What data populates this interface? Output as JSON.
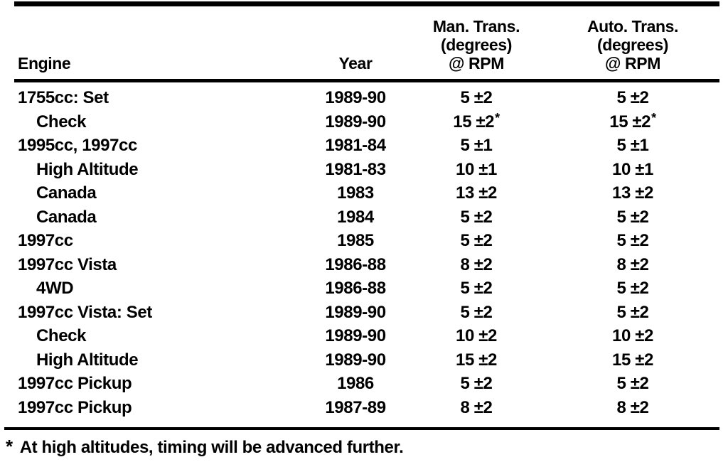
{
  "table": {
    "headers": {
      "engine": "Engine",
      "year": "Year",
      "man_trans": [
        "Man. Trans.",
        "(degrees)",
        "@ RPM"
      ],
      "auto_trans": [
        "Auto. Trans.",
        "(degrees)",
        "@ RPM"
      ]
    },
    "rows": [
      {
        "engine": "1755cc: Set",
        "indent": false,
        "year": "1989-90",
        "man": "5 ±2",
        "auto": "5 ±2"
      },
      {
        "engine": "Check",
        "indent": true,
        "year": "1989-90",
        "man": "15 ±2*",
        "auto": "15 ±2*"
      },
      {
        "engine": "1995cc, 1997cc",
        "indent": false,
        "year": "1981-84",
        "man": "5 ±1",
        "auto": "5 ±1"
      },
      {
        "engine": "High Altitude",
        "indent": true,
        "year": "1981-83",
        "man": "10 ±1",
        "auto": "10 ±1"
      },
      {
        "engine": "Canada",
        "indent": true,
        "year": "1983",
        "man": "13 ±2",
        "auto": "13 ±2"
      },
      {
        "engine": "Canada",
        "indent": true,
        "year": "1984",
        "man": "5 ±2",
        "auto": "5 ±2"
      },
      {
        "engine": "1997cc",
        "indent": false,
        "year": "1985",
        "man": "5 ±2",
        "auto": "5 ±2"
      },
      {
        "engine": "1997cc Vista",
        "indent": false,
        "year": "1986-88",
        "man": "8 ±2",
        "auto": "8 ±2"
      },
      {
        "engine": "4WD",
        "indent": true,
        "year": "1986-88",
        "man": "5 ±2",
        "auto": "5 ±2"
      },
      {
        "engine": "1997cc Vista: Set",
        "indent": false,
        "year": "1989-90",
        "man": "5 ±2",
        "auto": "5 ±2"
      },
      {
        "engine": "Check",
        "indent": true,
        "year": "1989-90",
        "man": "10 ±2",
        "auto": "10 ±2"
      },
      {
        "engine": "High Altitude",
        "indent": true,
        "year": "1989-90",
        "man": "15 ±2",
        "auto": "15 ±2"
      },
      {
        "engine": "1997cc Pickup",
        "indent": false,
        "year": "1986",
        "man": "5 ±2",
        "auto": "5 ±2"
      },
      {
        "engine": "1997cc Pickup",
        "indent": false,
        "year": "1987-89",
        "man": "8 ±2",
        "auto": "8 ±2"
      }
    ]
  },
  "footnote": {
    "marker": "*",
    "text": "At high altitudes, timing will be advanced further."
  },
  "colors": {
    "ink": "#000000",
    "paper": "#ffffff"
  }
}
